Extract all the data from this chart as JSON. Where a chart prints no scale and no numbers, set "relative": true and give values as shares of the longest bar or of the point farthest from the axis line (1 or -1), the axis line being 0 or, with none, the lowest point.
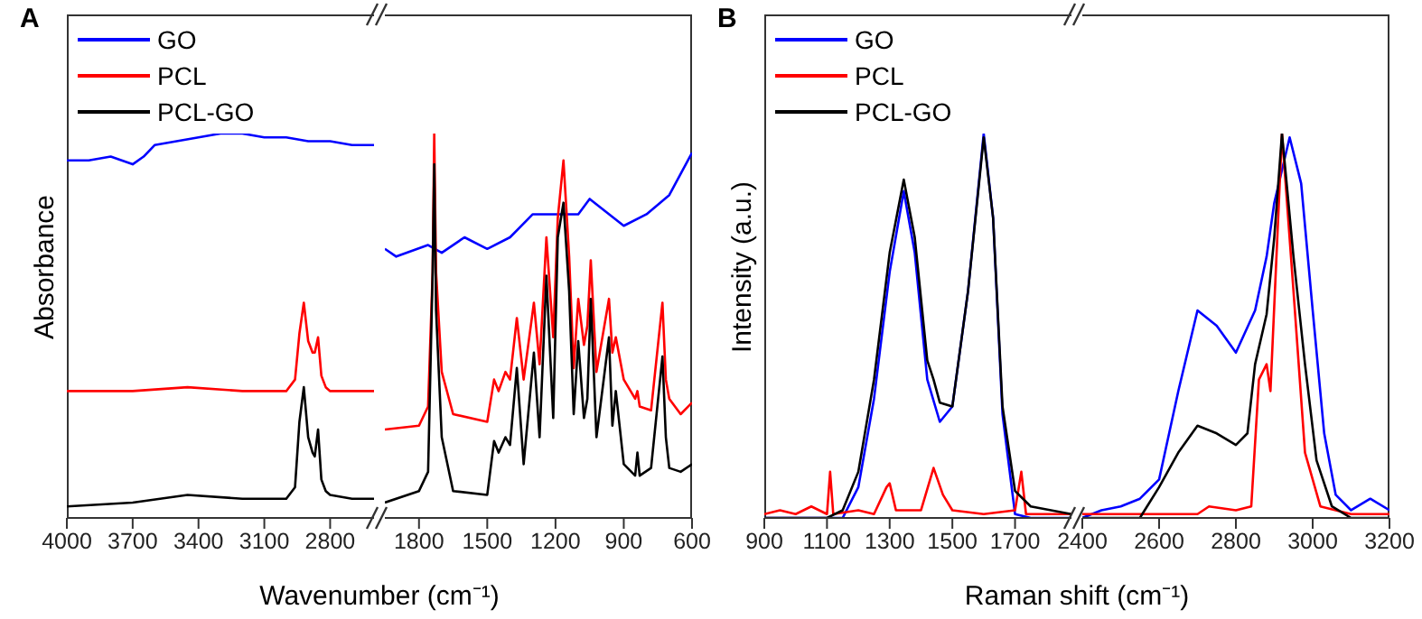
{
  "chart_data": [
    {
      "type": "line",
      "title": "A",
      "ylabel": "Absorbance",
      "xlabel": "Wavenumber (cm⁻¹)",
      "relative": true,
      "legend": "top left",
      "xlim": [
        4000,
        2600
      ],
      "xticks": [
        4000,
        3700,
        3400,
        3100,
        2800
      ],
      "series": [
        {
          "name": "GO",
          "color": "#0000ff",
          "x": [
            4000,
            3900,
            3800,
            3750,
            3700,
            3650,
            3600,
            3500,
            3400,
            3300,
            3200,
            3100,
            3000,
            2900,
            2800,
            2700,
            2600
          ],
          "values": [
            0.93,
            0.93,
            0.94,
            0.93,
            0.92,
            0.94,
            0.97,
            0.98,
            0.99,
            1,
            1,
            0.99,
            0.99,
            0.98,
            0.98,
            0.97,
            0.97
          ]
        },
        {
          "name": "PCL",
          "color": "#ff0000",
          "x": [
            4000,
            3700,
            3450,
            3200,
            3000,
            2960,
            2940,
            2920,
            2900,
            2880,
            2870,
            2855,
            2840,
            2820,
            2800,
            2700,
            2600
          ],
          "values": [
            0.33,
            0.33,
            0.34,
            0.33,
            0.33,
            0.36,
            0.48,
            0.56,
            0.46,
            0.43,
            0.43,
            0.47,
            0.37,
            0.34,
            0.33,
            0.33,
            0.33
          ]
        },
        {
          "name": "PCL-GO",
          "color": "#000000",
          "x": [
            4000,
            3700,
            3450,
            3200,
            3000,
            2960,
            2940,
            2920,
            2900,
            2880,
            2870,
            2855,
            2840,
            2820,
            2800,
            2700,
            2600
          ],
          "values": [
            0.03,
            0.04,
            0.06,
            0.05,
            0.05,
            0.08,
            0.25,
            0.34,
            0.21,
            0.17,
            0.16,
            0.23,
            0.1,
            0.07,
            0.06,
            0.05,
            0.05
          ]
        }
      ]
    },
    {
      "type": "line",
      "relative": true,
      "xlim": [
        1950,
        600
      ],
      "xticks": [
        1800,
        1500,
        1200,
        900,
        600
      ],
      "series": [
        {
          "color": "#0000ff",
          "x": [
            1950,
            1900,
            1760,
            1700,
            1600,
            1500,
            1400,
            1300,
            1200,
            1100,
            1050,
            900,
            800,
            700,
            600
          ],
          "values": [
            0.7,
            0.68,
            0.71,
            0.69,
            0.73,
            0.7,
            0.73,
            0.79,
            0.79,
            0.79,
            0.83,
            0.76,
            0.79,
            0.84,
            0.95
          ]
        },
        {
          "color": "#ff0000",
          "x": [
            1950,
            1800,
            1760,
            1740,
            1733,
            1725,
            1700,
            1650,
            1500,
            1470,
            1450,
            1420,
            1400,
            1370,
            1340,
            1295,
            1270,
            1240,
            1210,
            1190,
            1165,
            1140,
            1120,
            1100,
            1075,
            1060,
            1045,
            1020,
            965,
            950,
            935,
            900,
            850,
            840,
            830,
            780,
            730,
            715,
            700,
            650,
            600
          ],
          "values": [
            0.23,
            0.24,
            0.29,
            0.64,
            1,
            0.64,
            0.38,
            0.27,
            0.25,
            0.36,
            0.33,
            0.38,
            0.36,
            0.52,
            0.36,
            0.56,
            0.4,
            0.73,
            0.47,
            0.78,
            0.93,
            0.68,
            0.39,
            0.57,
            0.45,
            0.5,
            0.67,
            0.38,
            0.57,
            0.43,
            0.47,
            0.36,
            0.31,
            0.33,
            0.29,
            0.28,
            0.56,
            0.36,
            0.31,
            0.27,
            0.3
          ]
        },
        {
          "color": "#000000",
          "x": [
            1950,
            1800,
            1760,
            1740,
            1733,
            1725,
            1700,
            1650,
            1500,
            1470,
            1450,
            1420,
            1400,
            1370,
            1340,
            1295,
            1270,
            1240,
            1210,
            1190,
            1165,
            1140,
            1120,
            1100,
            1075,
            1060,
            1045,
            1020,
            965,
            950,
            935,
            900,
            850,
            840,
            830,
            780,
            730,
            715,
            700,
            650,
            600
          ],
          "values": [
            0.04,
            0.07,
            0.12,
            0.64,
            0.92,
            0.54,
            0.21,
            0.07,
            0.06,
            0.2,
            0.17,
            0.21,
            0.19,
            0.39,
            0.14,
            0.43,
            0.21,
            0.63,
            0.26,
            0.73,
            0.82,
            0.59,
            0.27,
            0.46,
            0.26,
            0.31,
            0.57,
            0.21,
            0.47,
            0.24,
            0.33,
            0.14,
            0.11,
            0.17,
            0.11,
            0.13,
            0.42,
            0.21,
            0.13,
            0.12,
            0.14
          ]
        }
      ]
    },
    {
      "type": "line",
      "title": "B",
      "ylabel": "Intensity (a.u.)",
      "xlabel": "Raman shift (cm⁻¹)",
      "relative": true,
      "legend": "top left",
      "xlim": [
        900,
        1880
      ],
      "xticks": [
        900,
        1100,
        1300,
        1500,
        1700
      ],
      "series": [
        {
          "name": "GO",
          "color": "#0000ff",
          "x": [
            900,
            1150,
            1200,
            1250,
            1300,
            1345,
            1380,
            1420,
            1460,
            1500,
            1550,
            1600,
            1630,
            1660,
            1700,
            1750,
            1880
          ],
          "values": [
            0,
            0,
            0.08,
            0.31,
            0.64,
            0.85,
            0.69,
            0.36,
            0.25,
            0.29,
            0.59,
            1,
            0.78,
            0.27,
            0.01,
            0,
            0
          ]
        },
        {
          "name": "PCL",
          "color": "#ff0000",
          "x": [
            900,
            950,
            1000,
            1050,
            1100,
            1110,
            1120,
            1200,
            1250,
            1290,
            1300,
            1320,
            1400,
            1440,
            1470,
            1500,
            1600,
            1700,
            1720,
            1735,
            1800,
            1880
          ],
          "values": [
            0.01,
            0.02,
            0.01,
            0.03,
            0.01,
            0.12,
            0.01,
            0.02,
            0.01,
            0.08,
            0.09,
            0.02,
            0.02,
            0.13,
            0.06,
            0.02,
            0.01,
            0.02,
            0.12,
            0.01,
            0.01,
            0.01
          ]
        },
        {
          "name": "PCL-GO",
          "color": "#000000",
          "x": [
            900,
            1100,
            1150,
            1200,
            1250,
            1300,
            1345,
            1380,
            1420,
            1440,
            1460,
            1500,
            1550,
            1600,
            1630,
            1660,
            1700,
            1750,
            1880
          ],
          "values": [
            0,
            0,
            0.02,
            0.12,
            0.36,
            0.69,
            0.88,
            0.73,
            0.41,
            0.36,
            0.3,
            0.29,
            0.59,
            0.99,
            0.78,
            0.29,
            0.07,
            0.03,
            0.01
          ]
        }
      ]
    },
    {
      "type": "line",
      "relative": true,
      "xlim": [
        2400,
        3200
      ],
      "xticks": [
        2400,
        2600,
        2800,
        3000,
        3200
      ],
      "series": [
        {
          "color": "#0000ff",
          "x": [
            2400,
            2450,
            2500,
            2550,
            2600,
            2650,
            2700,
            2750,
            2800,
            2850,
            2880,
            2900,
            2940,
            2970,
            3000,
            3030,
            3060,
            3100,
            3150,
            3200
          ],
          "values": [
            0,
            0.02,
            0.03,
            0.05,
            0.1,
            0.33,
            0.54,
            0.5,
            0.43,
            0.54,
            0.68,
            0.82,
            0.99,
            0.87,
            0.54,
            0.22,
            0.06,
            0.02,
            0.05,
            0.02
          ]
        },
        {
          "color": "#ff0000",
          "x": [
            2400,
            2700,
            2730,
            2800,
            2840,
            2860,
            2880,
            2890,
            2920,
            2950,
            2980,
            3020,
            3100,
            3200
          ],
          "values": [
            0.01,
            0.01,
            0.03,
            0.02,
            0.03,
            0.36,
            0.4,
            0.33,
            1,
            0.59,
            0.17,
            0.03,
            0.01,
            0.01
          ]
        },
        {
          "color": "#000000",
          "x": [
            2400,
            2550,
            2600,
            2650,
            2700,
            2750,
            2800,
            2830,
            2850,
            2880,
            2900,
            2920,
            2950,
            2980,
            3010,
            3050,
            3100,
            3200
          ],
          "values": [
            0,
            0,
            0.08,
            0.17,
            0.24,
            0.22,
            0.19,
            0.22,
            0.4,
            0.53,
            0.73,
            1,
            0.68,
            0.4,
            0.15,
            0.03,
            0,
            0
          ]
        }
      ]
    }
  ]
}
